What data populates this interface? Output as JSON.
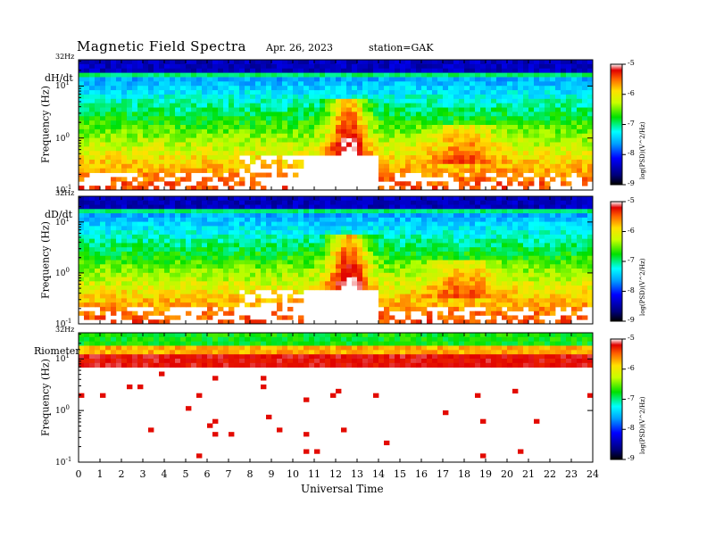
{
  "header": {
    "title": "Magnetic  Field  Spectra",
    "date": "Apr. 26, 2023",
    "station": "station=GAK"
  },
  "chart_data": {
    "type": "heatmap",
    "xlabel": "Universal Time",
    "x_ticks": [
      "0",
      "1",
      "2",
      "3",
      "4",
      "5",
      "6",
      "7",
      "8",
      "9",
      "10",
      "11",
      "12",
      "13",
      "14",
      "15",
      "16",
      "17",
      "18",
      "19",
      "20",
      "21",
      "22",
      "23",
      "24"
    ],
    "xlim": [
      0,
      24
    ],
    "ylim_hz": [
      0.1,
      32
    ],
    "y_scale": "log",
    "colorbar_scale": "log",
    "colors": {
      "background": "#ffffff",
      "low": "#00007a",
      "mid": "#00e000",
      "high": "#e00000"
    },
    "panels": [
      {
        "name": "dH/dt",
        "ylabel": "Frequency  (Hz)",
        "top_label": "32Hz",
        "y_ticks": [
          "10^1",
          "10^0",
          "10^-1"
        ],
        "colorbar": {
          "ticks": [
            "-5",
            "-6",
            "-7",
            "-8",
            "-9"
          ],
          "label": "log(PSD)(V^2/Hz)",
          "range": [
            -9,
            -5
          ]
        }
      },
      {
        "name": "dD/dt",
        "ylabel": "Frequency  (Hz)",
        "top_label": "32Hz",
        "y_ticks": [
          "10^1",
          "10^0",
          "10^-1"
        ],
        "colorbar": {
          "ticks": [
            "-5",
            "-6",
            "-7",
            "-8",
            "-9"
          ],
          "label": "log(PSD)(V^2/Hz)",
          "range": [
            -9,
            -5
          ]
        }
      },
      {
        "name": "Riometer",
        "ylabel": "Frequency  (Hz)",
        "top_label": "32Hz",
        "y_ticks": [
          "10^1",
          "10^0",
          "10^-1"
        ],
        "colorbar": {
          "ticks": [
            "-5",
            "-6",
            "-7",
            "-8",
            "-9"
          ],
          "label": "log(PSD)(V^2/Hz)",
          "range": [
            -9,
            -5
          ]
        }
      }
    ]
  }
}
